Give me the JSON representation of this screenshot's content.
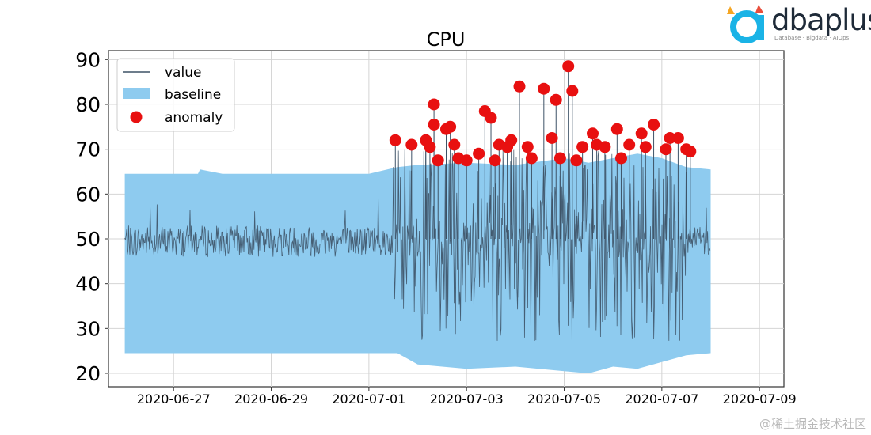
{
  "chart_data": {
    "type": "line",
    "title": "CPU",
    "xlabel": "",
    "ylabel": "",
    "xlim": [
      "2020-06-25T16:00",
      "2020-07-09T12:00"
    ],
    "ylim": [
      17,
      92
    ],
    "yticks": [
      20,
      30,
      40,
      50,
      60,
      70,
      80,
      90
    ],
    "xticks": [
      "2020-06-27",
      "2020-06-29",
      "2020-07-01",
      "2020-07-03",
      "2020-07-05",
      "2020-07-07",
      "2020-07-09"
    ],
    "grid": true,
    "legend_position": "top-left",
    "series": [
      {
        "name": "value",
        "kind": "line",
        "color": "#3d5266",
        "data_start": "2020-06-26",
        "data_end": "2020-07-08",
        "typical_range_before_2020-07-01_12h": [
          46,
          53
        ],
        "typical_range_after_2020-07-01_12h": [
          27,
          70
        ]
      },
      {
        "name": "baseline",
        "kind": "band",
        "color": "#8ecbef",
        "x": [
          "2020-06-26",
          "2020-06-27T12:00",
          "2020-06-27T13:00",
          "2020-06-28",
          "2020-07-01",
          "2020-07-01T14:00",
          "2020-07-02",
          "2020-07-03",
          "2020-07-04",
          "2020-07-05",
          "2020-07-05T12:00",
          "2020-07-06",
          "2020-07-06T12:00",
          "2020-07-07",
          "2020-07-07T12:00",
          "2020-07-08"
        ],
        "lower": [
          24.5,
          24.5,
          24.5,
          24.5,
          24.5,
          24.5,
          22.0,
          21.0,
          21.5,
          20.5,
          20.0,
          21.5,
          21.0,
          22.5,
          24.0,
          24.5
        ],
        "upper": [
          64.5,
          64.5,
          65.5,
          64.5,
          64.5,
          66.0,
          66.5,
          67.0,
          66.5,
          68.0,
          67.0,
          68.0,
          69.0,
          68.0,
          66.0,
          65.5
        ]
      },
      {
        "name": "anomaly",
        "kind": "scatter",
        "color": "#e81010",
        "x": [
          "2020-07-01T13:00",
          "2020-07-01T21:00",
          "2020-07-02T04:00",
          "2020-07-02T08:00",
          "2020-07-02T08:00",
          "2020-07-02T10:00",
          "2020-07-02T14:00",
          "2020-07-02T18:00",
          "2020-07-02T20:00",
          "2020-07-03T00:00",
          "2020-07-03T09:00",
          "2020-07-03T12:00",
          "2020-07-03T16:00",
          "2020-07-03T20:00",
          "2020-07-04T02:00",
          "2020-07-04T06:00",
          "2020-07-04T14:00",
          "2020-07-04T18:00",
          "2020-07-04T22:00",
          "2020-07-05T02:00",
          "2020-07-05T04:00",
          "2020-07-05T09:00",
          "2020-07-05T14:00",
          "2020-07-05T20:00",
          "2020-07-06T02:00",
          "2020-07-06T08:00",
          "2020-07-06T14:00",
          "2020-07-06T20:00",
          "2020-07-07T02:00",
          "2020-07-07T08:00",
          "2020-07-07T12:00",
          "2020-07-02T06:00",
          "2020-07-02T16:00",
          "2020-07-03T06:00",
          "2020-07-03T14:00",
          "2020-07-03T22:00",
          "2020-07-04T08:00",
          "2020-07-04T20:00",
          "2020-07-05T06:00",
          "2020-07-05T16:00",
          "2020-07-06T04:00",
          "2020-07-06T16:00",
          "2020-07-07T04:00",
          "2020-07-07T14:00"
        ],
        "y": [
          72,
          71,
          72,
          80,
          75.5,
          67.5,
          74.5,
          71,
          68,
          67.5,
          78.5,
          77,
          71,
          70.5,
          84,
          70.5,
          83.5,
          72.5,
          68,
          88.5,
          83,
          70.5,
          73.5,
          70.5,
          74.5,
          71,
          73.5,
          75.5,
          70,
          72.5,
          70,
          70.5,
          75,
          69,
          67.5,
          72,
          68,
          81,
          67.5,
          71,
          68,
          70.5,
          72.5,
          69.5
        ]
      }
    ]
  },
  "logo": {
    "text": "dbaplus",
    "tagline": "Database · Bigdata · AIOps"
  },
  "watermark": {
    "text": "@稀土掘金技术社区"
  }
}
